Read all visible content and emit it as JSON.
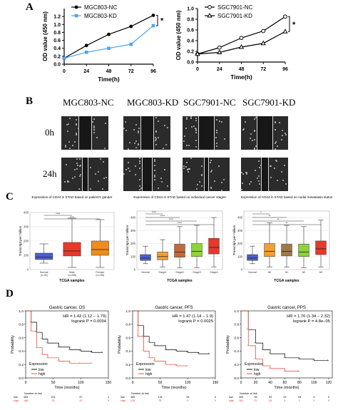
{
  "panels": {
    "a": {
      "letter": "A"
    },
    "b": {
      "letter": "B"
    },
    "c": {
      "letter": "C"
    },
    "d": {
      "letter": "D"
    }
  },
  "panelB": {
    "columns": [
      "MGC803-NC",
      "MGC803-KD",
      "SGC7901-NC",
      "SGC7901-KD"
    ],
    "rows": [
      "0h",
      "24h"
    ]
  },
  "chart_data": [
    {
      "type": "line",
      "xlabel": "Time(h)",
      "ylabel": "OD value (450 nm)",
      "x": [
        0,
        24,
        48,
        72,
        96
      ],
      "xlim": [
        0,
        96
      ],
      "ylim": [
        0,
        1.4
      ],
      "yticks": [
        0.0,
        0.2,
        0.4,
        0.6,
        0.8,
        1.0,
        1.2
      ],
      "series": [
        {
          "name": "MGC803-NC",
          "color": "#000000",
          "marker": "filled-circle",
          "values": [
            0.15,
            0.47,
            0.75,
            0.95,
            1.23
          ]
        },
        {
          "name": "MGC803-KD",
          "color": "#4fa3f0",
          "marker": "filled-square",
          "values": [
            0.15,
            0.3,
            0.4,
            0.5,
            0.97
          ]
        }
      ],
      "significance": "*"
    },
    {
      "type": "line",
      "xlabel": "Time(h)",
      "ylabel": "OD value (450 nm)",
      "x": [
        0,
        24,
        48,
        72,
        96
      ],
      "xlim": [
        0,
        96
      ],
      "ylim": [
        0,
        1.0
      ],
      "yticks": [
        0.0,
        0.2,
        0.4,
        0.6,
        0.8,
        1.0
      ],
      "series": [
        {
          "name": "SGC7901-NC",
          "color": "#000000",
          "marker": "open-circle",
          "values": [
            0.15,
            0.27,
            0.45,
            0.58,
            0.85
          ]
        },
        {
          "name": "SGC7901-KD",
          "color": "#000000",
          "marker": "open-triangle",
          "values": [
            0.15,
            0.18,
            0.28,
            0.35,
            0.57
          ]
        }
      ],
      "significance": "*"
    },
    {
      "type": "box",
      "title": "Expression of CD44 in STAD based on patient's gender",
      "xlabel": "TCGA samples",
      "ylabel": "Transcript per million",
      "categories": [
        "Normal (n=34)",
        "Male (n=268)",
        "Female (n=135)"
      ],
      "colors": [
        "#4a5fcf",
        "#e8372c",
        "#f08c1e"
      ],
      "boxes": [
        {
          "min": 45,
          "q1": 70,
          "median": 88,
          "q3": 115,
          "max": 180
        },
        {
          "min": 15,
          "q1": 95,
          "median": 130,
          "q3": 190,
          "max": 360
        },
        {
          "min": 15,
          "q1": 100,
          "median": 140,
          "q3": 200,
          "max": 350
        }
      ],
      "ylim": [
        0,
        400
      ],
      "significance": [
        "****",
        "****"
      ]
    },
    {
      "type": "box",
      "title": "Expression of CD44 in STAD based on individual cancer stages",
      "xlabel": "TCGA samples",
      "ylabel": "Transcript per million",
      "categories": [
        "Normal",
        "Stage1",
        "Stage2",
        "Stage3",
        "Stage4"
      ],
      "colors": [
        "#4a5fcf",
        "#f0a030",
        "#c06a3a",
        "#8fd33a",
        "#e8372c"
      ],
      "boxes": [
        {
          "min": 45,
          "q1": 70,
          "median": 88,
          "q3": 115,
          "max": 180
        },
        {
          "min": 20,
          "q1": 75,
          "median": 100,
          "q3": 135,
          "max": 230
        },
        {
          "min": 15,
          "q1": 95,
          "median": 135,
          "q3": 195,
          "max": 330
        },
        {
          "min": 15,
          "q1": 100,
          "median": 140,
          "q3": 200,
          "max": 340
        },
        {
          "min": 20,
          "q1": 120,
          "median": 170,
          "q3": 240,
          "max": 400
        }
      ],
      "ylim": [
        0,
        450
      ],
      "significance": [
        "****",
        "****",
        "****",
        "****"
      ]
    },
    {
      "type": "box",
      "title": "Expression of CD44 in STAD based on nodal metastasis status",
      "xlabel": "TCGA samples",
      "ylabel": "Transcript per million",
      "categories": [
        "Normal",
        "N0",
        "N1",
        "N2",
        "N3"
      ],
      "colors": [
        "#4a5fcf",
        "#f0a030",
        "#a0784a",
        "#8fd33a",
        "#e8372c"
      ],
      "boxes": [
        {
          "min": 45,
          "q1": 70,
          "median": 88,
          "q3": 115,
          "max": 180
        },
        {
          "min": 20,
          "q1": 100,
          "median": 140,
          "q3": 200,
          "max": 360
        },
        {
          "min": 20,
          "q1": 105,
          "median": 140,
          "q3": 195,
          "max": 340
        },
        {
          "min": 15,
          "q1": 100,
          "median": 135,
          "q3": 195,
          "max": 330
        },
        {
          "min": 20,
          "q1": 115,
          "median": 160,
          "q3": 220,
          "max": 380
        }
      ],
      "ylim": [
        0,
        450
      ],
      "significance": [
        "*",
        "**",
        "**",
        "**"
      ]
    },
    {
      "type": "line",
      "title": "Gastric cancer, OS",
      "xlabel": "Time (months)",
      "ylabel": "Probability",
      "xticks": [
        0,
        50,
        100,
        150
      ],
      "yticks": [
        0.0,
        0.2,
        0.4,
        0.6,
        0.8,
        1.0
      ],
      "stats": [
        "HR = 1.42 (1.12 − 1.79)",
        "logrank P = 0.0034"
      ],
      "legend_title": "Expression",
      "series": [
        {
          "name": "low",
          "color": "#000000",
          "x": [
            0,
            10,
            20,
            30,
            40,
            60,
            80,
            100,
            120,
            140
          ],
          "values": [
            1.0,
            0.83,
            0.68,
            0.58,
            0.52,
            0.46,
            0.42,
            0.4,
            0.38,
            0.38
          ]
        },
        {
          "name": "high",
          "color": "#e8372c",
          "x": [
            0,
            10,
            20,
            30,
            40,
            60,
            80,
            100,
            120
          ],
          "values": [
            1.0,
            0.7,
            0.45,
            0.35,
            0.3,
            0.25,
            0.22,
            0.22,
            0.22
          ]
        }
      ],
      "risk_table": {
        "header": "Number at risk",
        "times": [
          0,
          50,
          100,
          150
        ],
        "low": [
          "463",
          "211",
          "37",
          "1"
        ],
        "high": [
          "168",
          "32",
          "11",
          "0"
        ]
      }
    },
    {
      "type": "line",
      "title": "Gastric cancer, PFS",
      "xlabel": "Time (months)",
      "ylabel": "Probability",
      "xticks": [
        0,
        50,
        100,
        150
      ],
      "yticks": [
        0.0,
        0.2,
        0.4,
        0.6,
        0.8,
        1.0
      ],
      "stats": [
        "HR = 1.47 (1.14 − 1.9)",
        "logrank P = 0.0025"
      ],
      "legend_title": "Expression",
      "series": [
        {
          "name": "low",
          "color": "#000000",
          "x": [
            0,
            10,
            20,
            30,
            40,
            60,
            80,
            100,
            120,
            140
          ],
          "values": [
            1.0,
            0.78,
            0.62,
            0.53,
            0.48,
            0.42,
            0.4,
            0.38,
            0.36,
            0.36
          ]
        },
        {
          "name": "high",
          "color": "#e8372c",
          "x": [
            0,
            10,
            20,
            30,
            40,
            60,
            80,
            100
          ],
          "values": [
            1.0,
            0.62,
            0.4,
            0.3,
            0.25,
            0.2,
            0.18,
            0.18
          ]
        }
      ],
      "risk_table": {
        "header": "Number at risk",
        "times": [
          0,
          50,
          100,
          150
        ],
        "low": [
          "365",
          "131",
          "26",
          "0"
        ],
        "high": [
          "133",
          "31",
          "5",
          "0"
        ]
      }
    },
    {
      "type": "line",
      "title": "Gastric cancer, PPS",
      "xlabel": "Time (months)",
      "ylabel": "Probability",
      "xticks": [
        0,
        20,
        40,
        60,
        80,
        100,
        120
      ],
      "yticks": [
        0.0,
        0.2,
        0.4,
        0.6,
        0.8,
        1.0
      ],
      "stats": [
        "HR = 1.76 (1.34 − 2.32)",
        "logrank P = 4.8e−05"
      ],
      "legend_title": "Expression",
      "series": [
        {
          "name": "low",
          "color": "#000000",
          "x": [
            0,
            10,
            20,
            30,
            40,
            60,
            80,
            100,
            120
          ],
          "values": [
            1.0,
            0.72,
            0.52,
            0.42,
            0.36,
            0.3,
            0.28,
            0.26,
            0.26
          ]
        },
        {
          "name": "high",
          "color": "#e8372c",
          "x": [
            0,
            10,
            20,
            30,
            40,
            60,
            80
          ],
          "values": [
            1.0,
            0.48,
            0.28,
            0.18,
            0.14,
            0.1,
            0.1
          ]
        }
      ],
      "risk_table": {
        "header": "Number at risk",
        "times": [
          0,
          20,
          40,
          60,
          80,
          100,
          120
        ],
        "low": [
          "303",
          "96",
          "54",
          "23",
          "18",
          "9",
          "0"
        ],
        "high": [
          "181",
          "37",
          "15",
          "4",
          "1",
          "0",
          "0"
        ]
      }
    }
  ]
}
